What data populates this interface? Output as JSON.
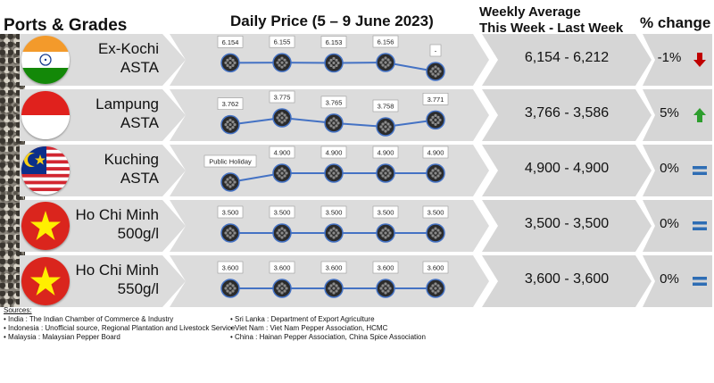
{
  "headers": {
    "ports": "Ports & Grades",
    "daily": "Daily Price (5 – 9 June 2023)",
    "weekly_line1": "Weekly Average",
    "weekly_line2": "This Week - Last Week",
    "change": "% change"
  },
  "rows": [
    {
      "port_line1": "Ex-Kochi",
      "port_line2": "ASTA",
      "flag": "india-flag",
      "labels": [
        "6.154",
        "6.155",
        "6.153",
        "6.156",
        "-"
      ],
      "avg": "6,154 - 6,212",
      "pct": "-1%",
      "trend": "down-arrow-icon"
    },
    {
      "port_line1": "Lampung",
      "port_line2": "ASTA",
      "flag": "indonesia-flag",
      "labels": [
        "3.762",
        "3.775",
        "3.765",
        "3.758",
        "3.771"
      ],
      "avg": "3,766 - 3,586",
      "pct": "5%",
      "trend": "up-arrow-icon"
    },
    {
      "port_line1": "Kuching",
      "port_line2": "ASTA",
      "flag": "malaysia-flag",
      "labels": [
        "Public Holiday",
        "4.900",
        "4.900",
        "4.900",
        "4.900"
      ],
      "avg": "4,900 - 4,900",
      "pct": "0%",
      "trend": "equal-icon"
    },
    {
      "port_line1": "Ho Chi Minh",
      "port_line2": "500g/l",
      "flag": "vietnam-flag",
      "labels": [
        "3.500",
        "3.500",
        "3.500",
        "3.500",
        "3.500"
      ],
      "avg": "3,500 - 3,500",
      "pct": "0%",
      "trend": "equal-icon"
    },
    {
      "port_line1": "Ho Chi Minh",
      "port_line2": "550g/l",
      "flag": "vietnam-flag",
      "labels": [
        "3.600",
        "3.600",
        "3.600",
        "3.600",
        "3.600"
      ],
      "avg": "3,600 - 3,600",
      "pct": "0%",
      "trend": "equal-icon"
    }
  ],
  "chart_data": [
    {
      "type": "line",
      "series": [
        {
          "values": [
            6154,
            6155,
            6153,
            6156,
            6100
          ]
        }
      ]
    },
    {
      "type": "line",
      "series": [
        {
          "values": [
            3762,
            3775,
            3765,
            3758,
            3771
          ]
        }
      ]
    },
    {
      "type": "line",
      "series": [
        {
          "values": [
            4850,
            4900,
            4900,
            4900,
            4900
          ]
        }
      ]
    },
    {
      "type": "line",
      "series": [
        {
          "values": [
            3500,
            3500,
            3500,
            3500,
            3500
          ]
        }
      ]
    },
    {
      "type": "line",
      "series": [
        {
          "values": [
            3600,
            3600,
            3600,
            3600,
            3600
          ]
        }
      ]
    }
  ],
  "colors": {
    "line": "#4472c4",
    "down": "#c00000",
    "up": "#2e9e2e",
    "equal": "#2e6db4"
  },
  "sources": {
    "title": "Sources:",
    "col1": [
      "•   India : The Indian Chamber of Commerce & Industry",
      "•   Indonesia : Unofficial source, Regional Plantation and Livestock Service",
      "•   Malaysia : Malaysian Pepper Board"
    ],
    "col2": [
      "•   Sri Lanka : Department of Export Agriculture",
      "•   Viet Nam : Viet Nam Pepper Association, HCMC",
      "•   China : Hainan Pepper Association, China Spice Association"
    ]
  }
}
